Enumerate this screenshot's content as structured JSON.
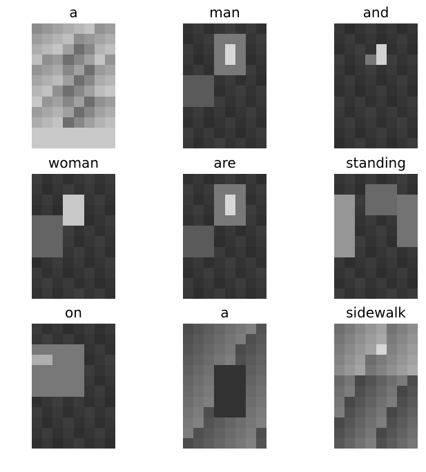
{
  "figure": {
    "panels": [
      {
        "word": "a",
        "attention": "full"
      },
      {
        "word": "man",
        "attention": "face"
      },
      {
        "word": "and",
        "attention": "face-small"
      },
      {
        "word": "woman",
        "attention": "face-left"
      },
      {
        "word": "are",
        "attention": "face"
      },
      {
        "word": "standing",
        "attention": "sides"
      },
      {
        "word": "on",
        "attention": "left-mid"
      },
      {
        "word": "a",
        "attention": "spread"
      },
      {
        "word": "sidewalk",
        "attention": "top-spread"
      }
    ]
  }
}
